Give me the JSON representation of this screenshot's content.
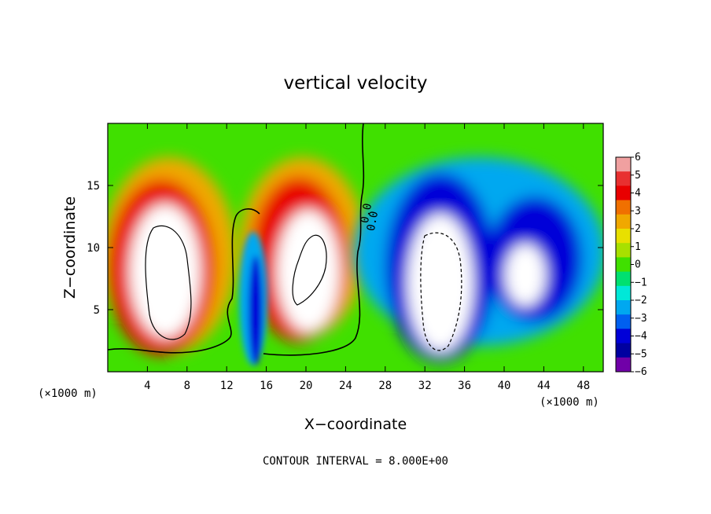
{
  "chart_data": {
    "type": "heatmap",
    "title": "vertical velocity",
    "xlabel": "X−coordinate",
    "ylabel": "Z−coordinate",
    "x_unit_left": "(×1000 m)",
    "x_unit_right": "(×1000 m)",
    "xlim": [
      0,
      50
    ],
    "ylim": [
      0,
      20
    ],
    "x_ticks": [
      4,
      8,
      12,
      16,
      20,
      24,
      28,
      32,
      36,
      40,
      44,
      48
    ],
    "x_tick_labels": [
      "4",
      "8",
      "12",
      "16",
      "20",
      "24",
      "28",
      "32",
      "36",
      "40",
      "44",
      "48"
    ],
    "y_ticks": [
      5,
      10,
      15
    ],
    "y_tick_labels": [
      "5",
      "10",
      "15"
    ],
    "colorbar": {
      "levels": [
        -6,
        -5,
        -4,
        -3,
        -2,
        -1,
        0,
        1,
        2,
        3,
        4,
        5,
        6
      ],
      "labels": [
        "6",
        "5",
        "4",
        "3",
        "2",
        "1",
        "0",
        "−1",
        "−2",
        "−3",
        "−4",
        "−5",
        "−6"
      ],
      "colors": [
        "#f0a0a0",
        "#e83030",
        "#e80000",
        "#f07000",
        "#f0a800",
        "#e8e000",
        "#a8e000",
        "#40e000",
        "#00e070",
        "#00e8d8",
        "#00a8f0",
        "#0060f0",
        "#0000d8",
        "#0000a0",
        "#7000a8"
      ]
    },
    "annotation": "CONTOUR INTERVAL = 8.000E+00",
    "contour_labels": [
      "0.0",
      "0.0"
    ],
    "features": [
      {
        "kind": "updraft",
        "cx": 6.5,
        "cz": 8.5,
        "sx": 2.6,
        "sz": 4.2,
        "w": 20
      },
      {
        "kind": "updraft",
        "cx": 20.5,
        "cz": 9.0,
        "sx": 2.6,
        "sz": 4.2,
        "w": 20
      },
      {
        "kind": "downdraft",
        "cx": 33.5,
        "cz": 7.5,
        "sx": 3.0,
        "sz": 5.0,
        "w": -20
      },
      {
        "kind": "downdraft",
        "cx": 42.0,
        "cz": 8.0,
        "sx": 2.4,
        "sz": 3.0,
        "w": -16
      },
      {
        "kind": "downdraft",
        "cx": 14.8,
        "cz": 6.0,
        "sx": 0.8,
        "sz": 5.0,
        "w": -6
      }
    ]
  }
}
